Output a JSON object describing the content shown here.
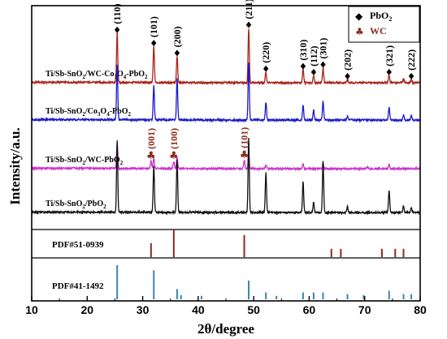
{
  "chart_data": {
    "type": "line",
    "xlabel": "2θ/degree",
    "ylabel": "Intensity/a.u.",
    "xlim": [
      10,
      80
    ],
    "xticks": [
      "10",
      "20",
      "30",
      "40",
      "50",
      "60",
      "70",
      "80"
    ],
    "grid": false,
    "legend": {
      "placement": "top-right",
      "entries": [
        {
          "symbol": "◆",
          "label": "PbO",
          "sub": "2",
          "color": "#000000"
        },
        {
          "symbol": "♣",
          "label": "WC",
          "sub": "",
          "color": "#8b2a18"
        }
      ]
    },
    "series": [
      {
        "name": "Ti/Sb-SnO2/WC-Co3O4-PbO2",
        "label_parts": [
          "Ti/Sb-SnO",
          "2",
          "/WC-Co",
          "3",
          "O",
          "4",
          "-PbO",
          "2"
        ],
        "color": "#a8251b",
        "peaks": [
          [
            25.4,
            6.0
          ],
          [
            32.0,
            4.4
          ],
          [
            36.2,
            3.2
          ],
          [
            49.1,
            6.6
          ],
          [
            52.2,
            1.3
          ],
          [
            58.9,
            1.6
          ],
          [
            60.8,
            0.9
          ],
          [
            62.5,
            1.8
          ],
          [
            66.9,
            0.4
          ],
          [
            74.4,
            0.9
          ],
          [
            77.0,
            0.4
          ],
          [
            78.4,
            0.4
          ]
        ]
      },
      {
        "name": "Ti/Sb-SnO2/Co3O4-PbO2",
        "label_parts": [
          "Ti/Sb-SnO",
          "2",
          "/Co",
          "3",
          "O",
          "4",
          "-PbO",
          "2"
        ],
        "color": "#1a1acc",
        "peaks": [
          [
            25.4,
            6.6
          ],
          [
            32.0,
            4.2
          ],
          [
            36.2,
            5.0
          ],
          [
            49.1,
            7.0
          ],
          [
            52.2,
            2.2
          ],
          [
            58.9,
            1.8
          ],
          [
            60.8,
            1.2
          ],
          [
            62.5,
            2.3
          ],
          [
            66.9,
            0.5
          ],
          [
            74.4,
            1.5
          ],
          [
            77.0,
            0.6
          ],
          [
            78.4,
            0.5
          ]
        ]
      },
      {
        "name": "Ti/Sb-SnO2/WC-PbO2",
        "label_parts": [
          "Ti/Sb-SnO",
          "2",
          "/WC-PbO",
          "2"
        ],
        "color": "#cc33cc",
        "peaks": [
          [
            25.4,
            3.1
          ],
          [
            31.5,
            0.9
          ],
          [
            32.0,
            1.3
          ],
          [
            35.6,
            0.9
          ],
          [
            36.2,
            1.4
          ],
          [
            48.3,
            1.0
          ],
          [
            49.1,
            1.8
          ],
          [
            52.2,
            0.4
          ],
          [
            58.9,
            0.6
          ],
          [
            62.5,
            0.7
          ],
          [
            70.5,
            0.3
          ],
          [
            74.4,
            0.5
          ]
        ]
      },
      {
        "name": "Ti/Sb-SnO2/PbO2",
        "label_parts": [
          "Ti/Sb-SnO",
          "2",
          "/PbO",
          "2"
        ],
        "color": "#111111",
        "peaks": [
          [
            25.4,
            8.6
          ],
          [
            32.0,
            5.7
          ],
          [
            36.2,
            6.4
          ],
          [
            49.1,
            9.0
          ],
          [
            52.2,
            4.8
          ],
          [
            58.9,
            3.8
          ],
          [
            60.8,
            1.2
          ],
          [
            62.5,
            6.3
          ],
          [
            66.9,
            0.7
          ],
          [
            74.4,
            2.6
          ],
          [
            77.0,
            0.8
          ],
          [
            78.4,
            0.6
          ]
        ]
      }
    ],
    "reference_patterns": [
      {
        "name": "PDF#51-0939",
        "color": "#8b2a18",
        "peaks": [
          [
            31.5,
            0.5
          ],
          [
            35.6,
            1.0
          ],
          [
            48.3,
            0.8
          ],
          [
            64.0,
            0.3
          ],
          [
            65.7,
            0.3
          ],
          [
            73.1,
            0.3
          ],
          [
            75.5,
            0.3
          ],
          [
            77.0,
            0.3
          ]
        ]
      },
      {
        "name": "PDF#41-1492",
        "color": "#3a86b0",
        "peaks": [
          [
            25.4,
            1.0
          ],
          [
            32.0,
            0.85
          ],
          [
            36.2,
            0.3
          ],
          [
            36.9,
            0.12
          ],
          [
            40.6,
            0.1
          ],
          [
            49.1,
            0.55
          ],
          [
            52.2,
            0.2
          ],
          [
            54.1,
            0.1
          ],
          [
            58.9,
            0.2
          ],
          [
            60.8,
            0.2
          ],
          [
            62.5,
            0.2
          ],
          [
            66.9,
            0.15
          ],
          [
            69.8,
            0.12
          ],
          [
            74.4,
            0.25
          ],
          [
            77.0,
            0.15
          ],
          [
            78.4,
            0.15
          ]
        ]
      }
    ],
    "pbo2_annotations": [
      {
        "hkl": "110",
        "x": 25.4
      },
      {
        "hkl": "101",
        "x": 32.0
      },
      {
        "hkl": "200",
        "x": 36.2
      },
      {
        "hkl": "211",
        "x": 49.1
      },
      {
        "hkl": "220",
        "x": 52.2
      },
      {
        "hkl": "310",
        "x": 58.9
      },
      {
        "hkl": "112",
        "x": 60.8
      },
      {
        "hkl": "301",
        "x": 62.5
      },
      {
        "hkl": "202",
        "x": 66.9
      },
      {
        "hkl": "321",
        "x": 74.4
      },
      {
        "hkl": "222",
        "x": 78.4
      }
    ],
    "wc_annotations": [
      {
        "hkl": "001",
        "x": 31.5
      },
      {
        "hkl": "100",
        "x": 35.6
      },
      {
        "hkl": "101",
        "x": 48.3
      }
    ]
  }
}
